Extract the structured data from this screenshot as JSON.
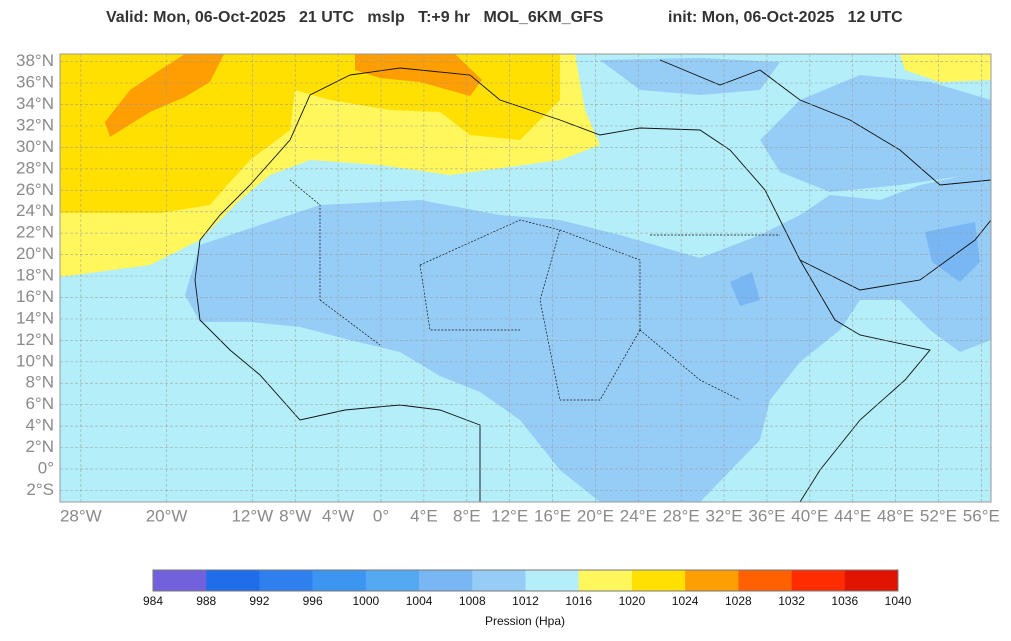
{
  "header": {
    "valid": "Valid: Mon, 06-Oct-2025   21 UTC   mslp   T:+9 hr   MOL_6KM_GFS",
    "init": "init: Mon, 06-Oct-2025   12 UTC"
  },
  "map": {
    "latitudes": [
      "38°N",
      "36°N",
      "34°N",
      "32°N",
      "30°N",
      "28°N",
      "26°N",
      "24°N",
      "22°N",
      "20°N",
      "18°N",
      "16°N",
      "14°N",
      "12°N",
      "10°N",
      "8°N",
      "6°N",
      "4°N",
      "2°N",
      "0°",
      "2°S"
    ],
    "longitudes": [
      "28°W",
      "20°W",
      "12°W",
      "8°W",
      "4°W",
      "0°",
      "4°E",
      "8°E",
      "12°E",
      "16°E",
      "20°E",
      "24°E",
      "28°E",
      "32°E",
      "36°E",
      "40°E",
      "44°E",
      "48°E",
      "52°E",
      "56°E"
    ]
  },
  "colorbar": {
    "levels": [
      984,
      988,
      992,
      996,
      1000,
      1004,
      1008,
      1012,
      1016,
      1020,
      1024,
      1028,
      1032,
      1036,
      1040
    ],
    "colors": [
      "#7261dc",
      "#1f6de8",
      "#2d80ee",
      "#3d95f2",
      "#55a8f2",
      "#78b7f4",
      "#96cdf7",
      "#b4eef8",
      "#fff75c",
      "#ffe000",
      "#ff9e00",
      "#ff6000",
      "#ff2c00",
      "#e01400"
    ],
    "label": "Pression (Hpa)"
  }
}
